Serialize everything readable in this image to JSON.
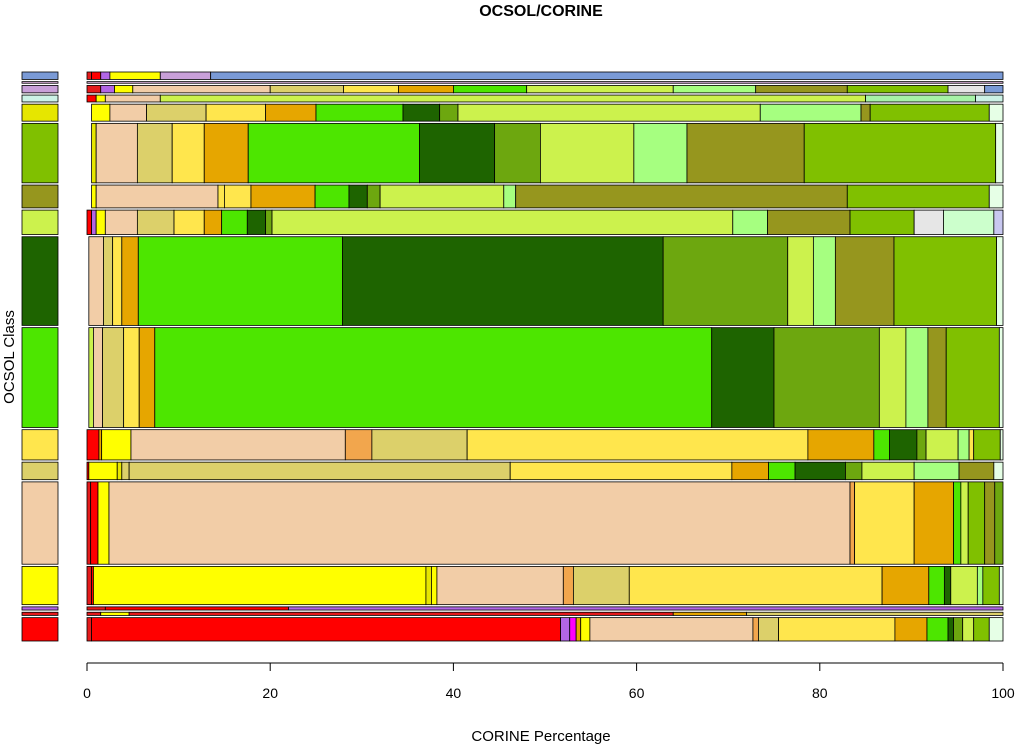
{
  "chart_data": {
    "type": "mosaic",
    "title": "OCSOL/CORINE",
    "xlabel": "CORINE Percentage",
    "ylabel": "OCSOL Class",
    "xlim": [
      0,
      100
    ],
    "xticks": [
      "0",
      "20",
      "40",
      "60",
      "80",
      "100"
    ],
    "rows": [
      {
        "key": "r1",
        "share": 1.4,
        "color": "#7a9ad6",
        "cells": [
          [
            0,
            "#e41a1c"
          ],
          [
            0.5,
            "#ff0000"
          ],
          [
            1.5,
            "#b266e6"
          ],
          [
            2.5,
            "#ffff00"
          ],
          [
            8,
            "#c8a0d8"
          ],
          [
            13.5,
            "#7a9ad6"
          ]
        ]
      },
      {
        "key": "r2",
        "share": 0.3,
        "color": "#e6b8e6",
        "cells": [
          [
            0,
            "#e6b8e6"
          ]
        ]
      },
      {
        "key": "r3",
        "share": 1.4,
        "color": "#c8a0d8",
        "cells": [
          [
            0,
            "#e41a1c"
          ],
          [
            1.5,
            "#b266e6"
          ],
          [
            3,
            "#ffff00"
          ],
          [
            5,
            "#f2cda7"
          ],
          [
            20,
            "#dcd06a"
          ],
          [
            28,
            "#ffe64d"
          ],
          [
            34,
            "#e6a600"
          ],
          [
            40,
            "#4de600"
          ],
          [
            48,
            "#ccf24d"
          ],
          [
            64,
            "#a6ff80"
          ],
          [
            73,
            "#96961e"
          ],
          [
            83,
            "#80c000"
          ],
          [
            94,
            "#e6e6e6"
          ],
          [
            98,
            "#7a9ad6"
          ]
        ]
      },
      {
        "key": "r4",
        "share": 1.3,
        "color": "#ccf2e6",
        "cells": [
          [
            0,
            "#ff0000"
          ],
          [
            1,
            "#ffff00"
          ],
          [
            2,
            "#f2cda7"
          ],
          [
            8,
            "#ccf24d"
          ],
          [
            85,
            "#a6f2a6"
          ],
          [
            97,
            "#ccf2e6"
          ]
        ]
      },
      {
        "key": "r5",
        "share": 3.2,
        "color": "#e6e600",
        "cells": [
          [
            0.5,
            "#ffff00"
          ],
          [
            2.5,
            "#f2cda7"
          ],
          [
            6.5,
            "#dcd06a"
          ],
          [
            13,
            "#ffe64d"
          ],
          [
            19.5,
            "#e6a600"
          ],
          [
            25,
            "#4de600"
          ],
          [
            34.5,
            "#1e6400"
          ],
          [
            38.5,
            "#6da70f"
          ],
          [
            40.5,
            "#ccf24d"
          ],
          [
            73.5,
            "#a6ff80"
          ],
          [
            84.5,
            "#96961e"
          ],
          [
            85.5,
            "#80c000"
          ],
          [
            98.5,
            "#e6ffe6"
          ]
        ]
      },
      {
        "key": "r6",
        "share": 11.2,
        "color": "#80c000",
        "cells": [
          [
            0.5,
            "#e6e600"
          ],
          [
            1,
            "#f2cda7"
          ],
          [
            5.5,
            "#dcd06a"
          ],
          [
            9.3,
            "#ffe64d"
          ],
          [
            12.8,
            "#e6a600"
          ],
          [
            17.6,
            "#4de600"
          ],
          [
            36.3,
            "#1e6400"
          ],
          [
            44.5,
            "#6da70f"
          ],
          [
            49.5,
            "#ccf24d"
          ],
          [
            59.7,
            "#a6ff80"
          ],
          [
            65.5,
            "#96961e"
          ],
          [
            78.3,
            "#80c000"
          ],
          [
            99.2,
            "#e6ffe6"
          ]
        ]
      },
      {
        "key": "r7",
        "share": 4.3,
        "color": "#96961e",
        "cells": [
          [
            0.5,
            "#ffff00"
          ],
          [
            1,
            "#f2cda7"
          ],
          [
            14.3,
            "#ffe64d"
          ],
          [
            15,
            "#ffe64d"
          ],
          [
            17.9,
            "#e6a600"
          ],
          [
            24.9,
            "#4de600"
          ],
          [
            28.6,
            "#1e6400"
          ],
          [
            30.6,
            "#6da70f"
          ],
          [
            32,
            "#ccf24d"
          ],
          [
            45.5,
            "#a6ff80"
          ],
          [
            46.8,
            "#96961e"
          ],
          [
            83,
            "#80c000"
          ],
          [
            98.5,
            "#e6ffe6"
          ]
        ]
      },
      {
        "key": "r8",
        "share": 4.6,
        "color": "#ccf24d",
        "cells": [
          [
            0,
            "#ff0000"
          ],
          [
            0.5,
            "#b266e6"
          ],
          [
            1,
            "#ffff00"
          ],
          [
            2,
            "#f2cda7"
          ],
          [
            5.5,
            "#dcd06a"
          ],
          [
            9.5,
            "#ffe64d"
          ],
          [
            12.8,
            "#e6a600"
          ],
          [
            14.7,
            "#4de600"
          ],
          [
            17.5,
            "#1e6400"
          ],
          [
            19.5,
            "#6da70f"
          ],
          [
            20.2,
            "#ccf24d"
          ],
          [
            70.5,
            "#a6ff80"
          ],
          [
            74.3,
            "#96961e"
          ],
          [
            83.3,
            "#80c000"
          ],
          [
            90.3,
            "#e6e6e6"
          ],
          [
            93.5,
            "#ccffcc"
          ],
          [
            99,
            "#c8c8f0"
          ]
        ]
      },
      {
        "key": "r9",
        "share": 16.7,
        "color": "#1e6400",
        "cells": [
          [
            0.2,
            "#f2cda7"
          ],
          [
            1.8,
            "#dcd06a"
          ],
          [
            2.8,
            "#ffe64d"
          ],
          [
            3.8,
            "#e6a600"
          ],
          [
            5.6,
            "#4de600"
          ],
          [
            27.9,
            "#1e6400"
          ],
          [
            62.9,
            "#6da70f"
          ],
          [
            76.5,
            "#ccf24d"
          ],
          [
            79.3,
            "#a6ff80"
          ],
          [
            81.7,
            "#96961e"
          ],
          [
            88.1,
            "#80c000"
          ],
          [
            99.3,
            "#e6ffe6"
          ]
        ]
      },
      {
        "key": "r10",
        "share": 18.8,
        "color": "#4de600",
        "cells": [
          [
            0.2,
            "#ccf24d"
          ],
          [
            0.7,
            "#f2cda7"
          ],
          [
            1.7,
            "#dcd06a"
          ],
          [
            4,
            "#ffe64d"
          ],
          [
            5.7,
            "#e6a600"
          ],
          [
            7.4,
            "#4de600"
          ],
          [
            68.2,
            "#1e6400"
          ],
          [
            75,
            "#6da70f"
          ],
          [
            86.5,
            "#ccf24d"
          ],
          [
            89.4,
            "#a6ff80"
          ],
          [
            91.8,
            "#96961e"
          ],
          [
            93.8,
            "#80c000"
          ],
          [
            99.6,
            "#e6ffe6"
          ]
        ]
      },
      {
        "key": "r11",
        "share": 5.7,
        "color": "#ffe64d",
        "cells": [
          [
            0,
            "#ff0000"
          ],
          [
            1.3,
            "#e6a600"
          ],
          [
            1.6,
            "#ffff00"
          ],
          [
            4.8,
            "#f2cda7"
          ],
          [
            28.2,
            "#f2a64d"
          ],
          [
            31.1,
            "#dcd06a"
          ],
          [
            41.5,
            "#ffe64d"
          ],
          [
            78.7,
            "#e6a600"
          ],
          [
            85.9,
            "#4de600"
          ],
          [
            87.6,
            "#1e6400"
          ],
          [
            90.6,
            "#6da70f"
          ],
          [
            91.6,
            "#ccf24d"
          ],
          [
            95.1,
            "#a6ff80"
          ],
          [
            96.3,
            "#ffe64d"
          ],
          [
            96.8,
            "#80c000"
          ],
          [
            99.7,
            "#e6ffe6"
          ]
        ]
      },
      {
        "key": "r12",
        "share": 3.3,
        "color": "#dcd06a",
        "cells": [
          [
            0,
            "#ff0000"
          ],
          [
            0.2,
            "#ffff00"
          ],
          [
            3.3,
            "#e6e600"
          ],
          [
            3.8,
            "#dcd06a"
          ],
          [
            4.6,
            "#dcd06a"
          ],
          [
            46.2,
            "#ffe64d"
          ],
          [
            70.4,
            "#e6a600"
          ],
          [
            74.4,
            "#4de600"
          ],
          [
            77.3,
            "#1e6400"
          ],
          [
            82.8,
            "#6da70f"
          ],
          [
            84.6,
            "#ccf24d"
          ],
          [
            90.3,
            "#a6ff80"
          ],
          [
            95.2,
            "#96961e"
          ],
          [
            99,
            "#e6ffe6"
          ]
        ]
      },
      {
        "key": "r13",
        "share": 15.5,
        "color": "#f2cda7",
        "cells": [
          [
            0,
            "#e41a1c"
          ],
          [
            0.4,
            "#ff0000"
          ],
          [
            1.2,
            "#ffff00"
          ],
          [
            2.4,
            "#f2cda7"
          ],
          [
            83.3,
            "#f2a64d"
          ],
          [
            83.8,
            "#ffe64d"
          ],
          [
            90.3,
            "#e6a600"
          ],
          [
            94.6,
            "#4de600"
          ],
          [
            95.4,
            "#ccf24d"
          ],
          [
            96.2,
            "#80c000"
          ],
          [
            98,
            "#96961e"
          ],
          [
            99.1,
            "#6da70f"
          ]
        ]
      },
      {
        "key": "r14",
        "share": 7.2,
        "color": "#ffff00",
        "cells": [
          [
            0,
            "#e41a1c"
          ],
          [
            0.5,
            "#ff0000"
          ],
          [
            0.7,
            "#ffff00"
          ],
          [
            37,
            "#e6e600"
          ],
          [
            37.6,
            "#ffff00"
          ],
          [
            38.2,
            "#f2cda7"
          ],
          [
            52,
            "#f2a64d"
          ],
          [
            53.1,
            "#dcd06a"
          ],
          [
            59.2,
            "#ffe64d"
          ],
          [
            86.8,
            "#e6a600"
          ],
          [
            91.9,
            "#4de600"
          ],
          [
            93.6,
            "#1e6400"
          ],
          [
            94.3,
            "#ccf24d"
          ],
          [
            97.2,
            "#a6ff80"
          ],
          [
            97.8,
            "#80c000"
          ],
          [
            99.6,
            "#e6ffe6"
          ]
        ]
      },
      {
        "key": "r15",
        "share": 0.6,
        "color": "#b266e6",
        "cells": [
          [
            0,
            "#e41a1c"
          ],
          [
            2,
            "#ff0000"
          ],
          [
            22,
            "#b266e6"
          ]
        ]
      },
      {
        "key": "r16",
        "share": 0.6,
        "color": "#e41a1c",
        "cells": [
          [
            0,
            "#e41a1c"
          ],
          [
            1.5,
            "#ffff00"
          ],
          [
            4.6,
            "#e41a1c"
          ],
          [
            64,
            "#e6a600"
          ],
          [
            72,
            "#dcd06a"
          ]
        ]
      },
      {
        "key": "r17",
        "share": 4.4,
        "color": "#ff0000",
        "cells": [
          [
            0,
            "#e41a1c"
          ],
          [
            0.5,
            "#ff0000"
          ],
          [
            51.7,
            "#b266e6"
          ],
          [
            52.7,
            "#ff00ff"
          ],
          [
            53.4,
            "#e6a600"
          ],
          [
            53.9,
            "#ffff00"
          ],
          [
            54.9,
            "#f2cda7"
          ],
          [
            72.7,
            "#f2a64d"
          ],
          [
            73.3,
            "#dcd06a"
          ],
          [
            75.5,
            "#ffe64d"
          ],
          [
            88.2,
            "#e6a600"
          ],
          [
            91.7,
            "#4de600"
          ],
          [
            94,
            "#1e6400"
          ],
          [
            94.6,
            "#6da70f"
          ],
          [
            95.6,
            "#ccf24d"
          ],
          [
            96.8,
            "#80c000"
          ],
          [
            98.5,
            "#e6ffe6"
          ]
        ]
      }
    ]
  }
}
